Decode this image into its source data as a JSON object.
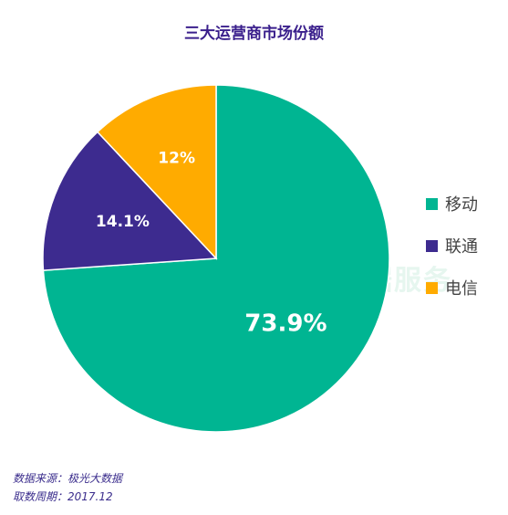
{
  "colors": {
    "title": "#3a1f8c",
    "footer": "#3a2c8c",
    "slice_text": "#ffffff",
    "watermark": "#e6f6ef"
  },
  "watermark_text": "数据服务",
  "chart_data": {
    "type": "pie",
    "title": "三大运营商市场份额",
    "start_angle_deg": 0,
    "direction": "clockwise-from-top",
    "legend_position": "right",
    "slices": [
      {
        "label": "移动",
        "value": 73.9,
        "value_label": "73.9%",
        "color": "#00b592"
      },
      {
        "label": "联通",
        "value": 14.1,
        "value_label": "14.1%",
        "color": "#3d2b8f"
      },
      {
        "label": "电信",
        "value": 12.0,
        "value_label": "12%",
        "color": "#ffab00"
      }
    ]
  },
  "footer": {
    "source": "数据来源：极光大数据",
    "period": "取数周期：2017.12"
  }
}
